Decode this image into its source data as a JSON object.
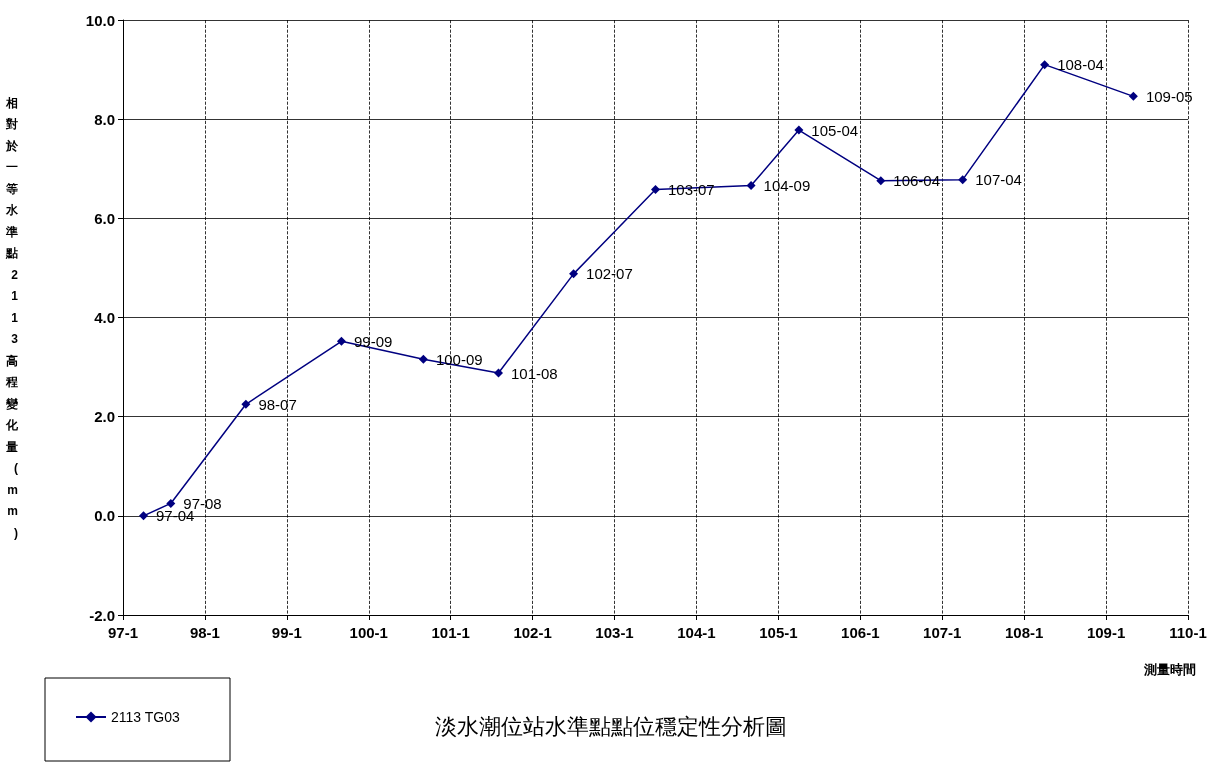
{
  "chart_data": {
    "type": "line",
    "title": "淡水潮位站水準點點位穩定性分析圖",
    "xlabel": "測量時間",
    "ylabel": "相對於一等水準點2113高程變化量(mm)",
    "categories": [
      "97-1",
      null,
      null,
      null,
      null,
      null,
      null,
      null,
      null,
      null,
      null,
      null,
      "98-1",
      null,
      null,
      null,
      null,
      null,
      null,
      null,
      null,
      null,
      null,
      null,
      "99-1",
      null,
      null,
      null,
      null,
      null,
      null,
      null,
      null,
      null,
      null,
      null,
      "100-1",
      null,
      null,
      null,
      null,
      null,
      null,
      null,
      null,
      null,
      null,
      null,
      "101-1",
      null,
      null,
      null,
      null,
      null,
      null,
      null,
      null,
      null,
      null,
      null,
      "102-1",
      null,
      null,
      null,
      null,
      null,
      null,
      null,
      null,
      null,
      null,
      null,
      "103-1",
      null,
      null,
      null,
      null,
      null,
      null,
      null,
      null,
      null,
      null,
      null,
      "104-1",
      null,
      null,
      null,
      null,
      null,
      null,
      null,
      null,
      null,
      null,
      null,
      "105-1",
      null,
      null,
      null,
      null,
      null,
      null,
      null,
      null,
      null,
      null,
      null,
      "106-1",
      null,
      null,
      null,
      null,
      null,
      null,
      null,
      null,
      null,
      null,
      null,
      "107-1",
      null,
      null,
      null,
      null,
      null,
      null,
      null,
      null,
      null,
      null,
      null,
      "108-1",
      null,
      null,
      null,
      null,
      null,
      null,
      null,
      null,
      null,
      null,
      null,
      "109-1",
      null,
      null,
      null,
      null,
      null,
      null,
      null,
      null,
      null,
      null,
      null,
      "110-1"
    ],
    "series": [
      {
        "name": "2113 TG03",
        "color": "#000080",
        "values": [
          null,
          null,
          null,
          0,
          null,
          null,
          null,
          0.25,
          null,
          null,
          null,
          null,
          null,
          null,
          null,
          null,
          null,
          null,
          2.25,
          null,
          null,
          null,
          null,
          null,
          null,
          null,
          null,
          null,
          null,
          null,
          null,
          null,
          3.52,
          null,
          null,
          null,
          null,
          null,
          null,
          null,
          null,
          null,
          null,
          null,
          3.16,
          null,
          null,
          null,
          null,
          null,
          null,
          null,
          null,
          null,
          null,
          2.88,
          null,
          null,
          null,
          null,
          null,
          null,
          null,
          null,
          null,
          null,
          4.88,
          null,
          null,
          null,
          null,
          null,
          null,
          null,
          null,
          null,
          null,
          null,
          6.58,
          null,
          null,
          null,
          null,
          null,
          null,
          null,
          null,
          null,
          null,
          null,
          null,
          null,
          6.66,
          null,
          null,
          null,
          null,
          null,
          null,
          7.78,
          null,
          null,
          null,
          null,
          null,
          null,
          null,
          null,
          null,
          null,
          null,
          6.76,
          null,
          null,
          null,
          null,
          null,
          null,
          null,
          null,
          null,
          null,
          null,
          6.78,
          null,
          null,
          null,
          null,
          null,
          null,
          null,
          null,
          null,
          null,
          null,
          9.1,
          null,
          null,
          null,
          null,
          null,
          null,
          null,
          null,
          null,
          null,
          null,
          null,
          8.46,
          null,
          null,
          null,
          null,
          null,
          null,
          null,
          null
        ],
        "value_labels": [
          null,
          null,
          null,
          "97-04",
          null,
          null,
          null,
          "97-08",
          null,
          null,
          null,
          null,
          null,
          null,
          null,
          null,
          null,
          null,
          "98-07",
          null,
          null,
          null,
          null,
          null,
          null,
          null,
          null,
          null,
          null,
          null,
          null,
          null,
          "99-09",
          null,
          null,
          null,
          null,
          null,
          null,
          null,
          null,
          null,
          null,
          null,
          "100-09",
          null,
          null,
          null,
          null,
          null,
          null,
          null,
          null,
          null,
          null,
          "101-08",
          null,
          null,
          null,
          null,
          null,
          null,
          null,
          null,
          null,
          null,
          "102-07",
          null,
          null,
          null,
          null,
          null,
          null,
          null,
          null,
          null,
          null,
          null,
          "103-07",
          null,
          null,
          null,
          null,
          null,
          null,
          null,
          null,
          null,
          null,
          null,
          null,
          null,
          "104-09",
          null,
          null,
          null,
          null,
          null,
          null,
          "105-04",
          null,
          null,
          null,
          null,
          null,
          null,
          null,
          null,
          null,
          null,
          null,
          "106-04",
          null,
          null,
          null,
          null,
          null,
          null,
          null,
          null,
          null,
          null,
          null,
          "107-04",
          null,
          null,
          null,
          null,
          null,
          null,
          null,
          null,
          null,
          null,
          null,
          "108-04",
          null,
          null,
          null,
          null,
          null,
          null,
          null,
          null,
          null,
          null,
          null,
          null,
          "109-05",
          null,
          null,
          null,
          null,
          null,
          null,
          null,
          null
        ]
      }
    ],
    "ylim": [
      -2,
      10
    ],
    "yticks": [
      {
        "value": -2,
        "label": "-2.0"
      },
      {
        "value": 0,
        "label": "0.0"
      },
      {
        "value": 2,
        "label": "2.0"
      },
      {
        "value": 4,
        "label": "4.0"
      },
      {
        "value": 6,
        "label": "6.0"
      },
      {
        "value": 8,
        "label": "8.0"
      },
      {
        "value": 10,
        "label": "10.0"
      }
    ],
    "grid": true,
    "legend": "bottom left",
    "marker": "diamond",
    "line_style": "solid"
  }
}
